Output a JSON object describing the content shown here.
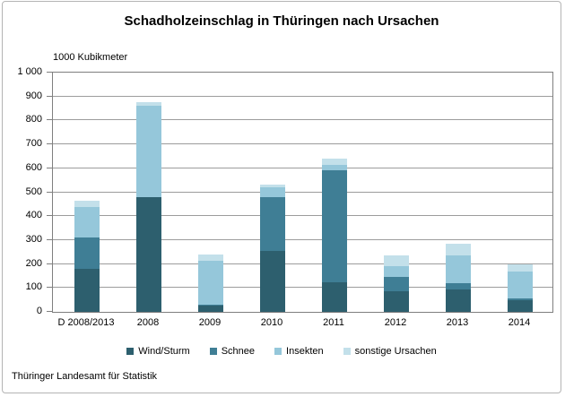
{
  "title": "Schadholzeinschlag in Thüringen nach Ursachen",
  "footer": "Thüringer Landesamt für Statistik",
  "chart_data": {
    "type": "bar",
    "stacked": true,
    "title": "Schadholzeinschlag in Thüringen nach Ursachen",
    "unit_label": "1000 Kubikmeter",
    "categories": [
      "D 2008/2013",
      "2008",
      "2009",
      "2010",
      "2011",
      "2012",
      "2013",
      "2014"
    ],
    "series": [
      {
        "name": "Wind/Sturm",
        "color": "#2d5f6e",
        "values": [
          180,
          480,
          25,
          255,
          125,
          85,
          95,
          50
        ]
      },
      {
        "name": "Schnee",
        "color": "#3f7e95",
        "values": [
          130,
          0,
          5,
          225,
          465,
          60,
          25,
          5
        ]
      },
      {
        "name": "Insekten",
        "color": "#95c7da",
        "values": [
          130,
          380,
          185,
          40,
          25,
          45,
          115,
          115
        ]
      },
      {
        "name": "sonstige Ursachen",
        "color": "#c3e0ea",
        "values": [
          25,
          15,
          25,
          12,
          25,
          45,
          50,
          30
        ]
      }
    ],
    "totals": [
      465,
      875,
      240,
      532,
      640,
      235,
      285,
      200
    ],
    "ylim": [
      0,
      1000
    ],
    "ytick_step": 100,
    "ytick_labels": [
      "0",
      "100",
      "200",
      "300",
      "400",
      "500",
      "600",
      "700",
      "800",
      "900",
      "1 000"
    ],
    "grid": true,
    "legend_position": "bottom",
    "source": "Thüringer Landesamt für Statistik"
  }
}
